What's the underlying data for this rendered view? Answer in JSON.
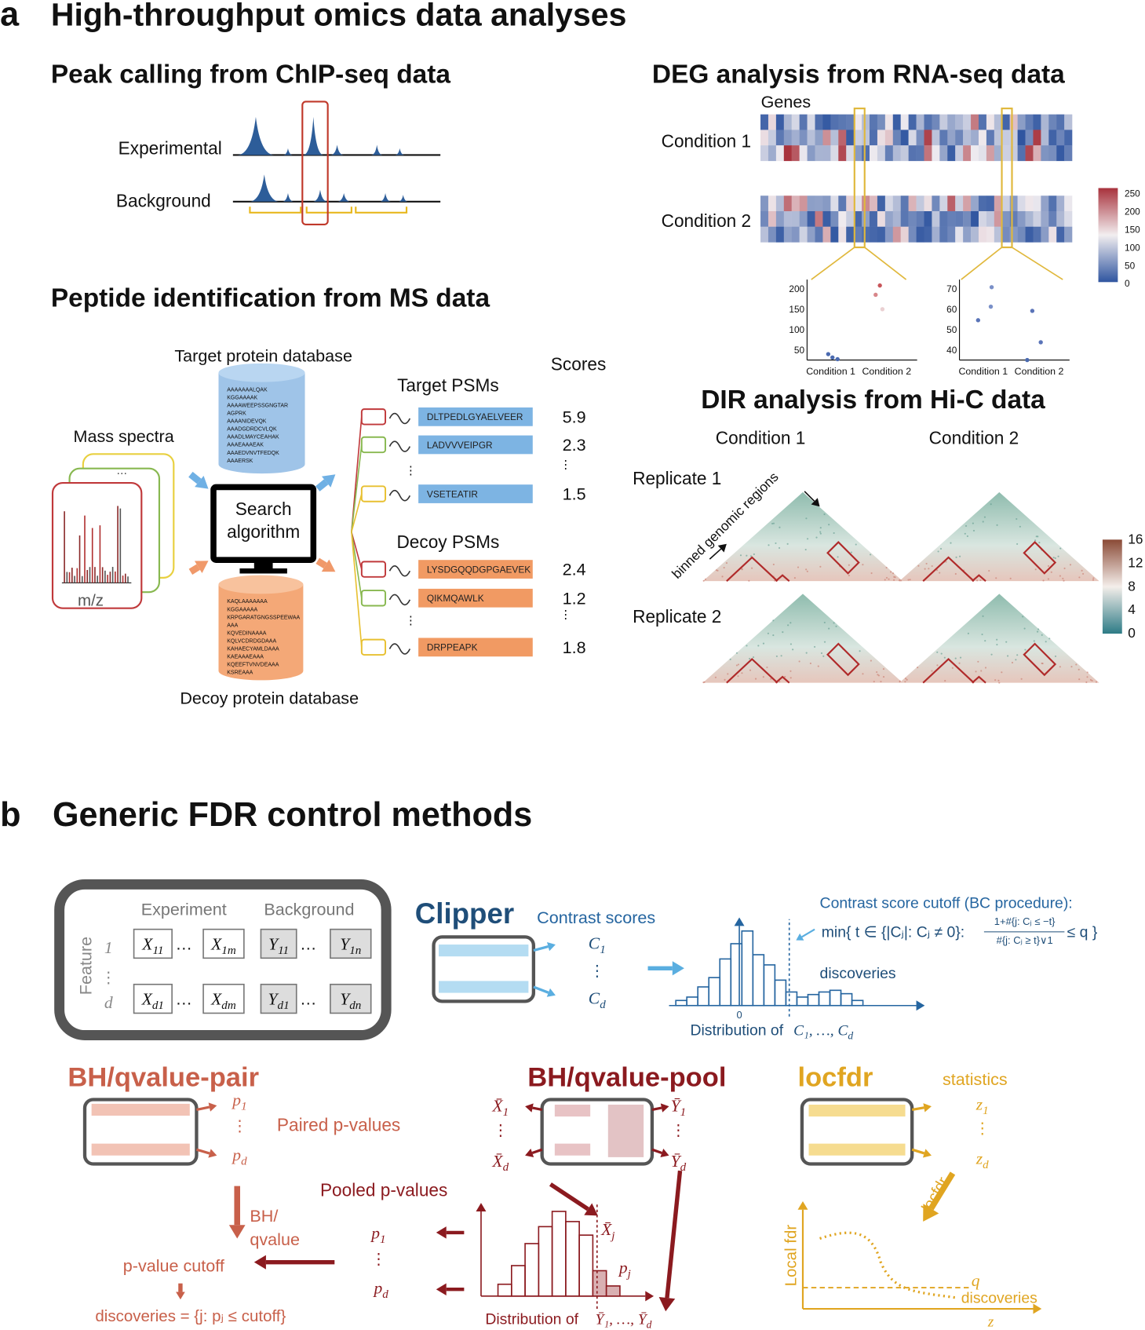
{
  "panel_a": {
    "label": "a",
    "title": "High-throughput omics data analyses",
    "peak_calling": {
      "title": "Peak calling from ChIP-seq data",
      "experimental": "Experimental",
      "background": "Background"
    },
    "deg": {
      "title": "DEG analysis from RNA-seq data",
      "genes": "Genes",
      "condition_1": "Condition 1",
      "condition_2": "Condition 2",
      "colorbar_ticks": [
        250,
        200,
        150,
        100,
        50,
        0
      ],
      "scatter_left_yticks": [
        200,
        150,
        100,
        50
      ],
      "scatter_right_yticks": [
        70,
        60,
        50,
        40
      ],
      "scatter_xlabels": [
        "Condition 1",
        "Condition 2"
      ]
    },
    "ms": {
      "title": "Peptide identification from MS data",
      "target_database": "Target protein database",
      "decoy_database": "Decoy protein database",
      "target_entries": [
        "AAAAAAALQAK",
        "KGGAAAAK",
        "AAAAWEEPSSGNGTAR",
        "AGPRK",
        "AAAANIDEVQK",
        "AAADGDRDCVLQK",
        "AAADLMAYCEAHAK",
        "AAAEAAAEAK",
        "AAAEDVNVTFEDQK",
        "AAAERSK"
      ],
      "decoy_entries": [
        "KAQLAAAAAAA",
        "KGGAAAAA",
        "KRPGARATGNGSSPEEWAA",
        "AAA",
        "KQVEDINAAAA",
        "KQLVCDRDGDAAA",
        "KAHAECYAMLDAAA",
        "KAEAAAEAAA",
        "KQEEFTVNVDEAAA",
        "KSREAAA"
      ],
      "mass_spectra": "Mass spectra",
      "mz": "m/z",
      "search": "Search",
      "algorithm": "algorithm",
      "scores": "Scores",
      "target_psms": "Target PSMs",
      "decoy_psms": "Decoy PSMs",
      "vdots": "⋮",
      "target_rows": [
        {
          "peptide": "DLTPEDLGYAELVEER",
          "score": 5.9
        },
        {
          "peptide": "LADVVVEIPGR",
          "score": 2.3
        },
        {
          "peptide": "VSETEATIR",
          "score": 1.5
        }
      ],
      "decoy_rows": [
        {
          "peptide": "LYSDGQQDGPGAEVEK",
          "score": 2.4
        },
        {
          "peptide": "QIKMQAWLK",
          "score": 1.2
        },
        {
          "peptide": "DRPPEAPK",
          "score": 1.8
        }
      ]
    },
    "dir": {
      "title": "DIR analysis from Hi-C data",
      "condition_1": "Condition 1",
      "condition_2": "Condition 2",
      "replicate_1": "Replicate 1",
      "replicate_2": "Replicate 2",
      "axis_label": "binned genomic regions",
      "colorbar_ticks": [
        16,
        12,
        8,
        4,
        0
      ]
    }
  },
  "panel_b": {
    "label": "b",
    "title": "Generic FDR control methods",
    "matrix": {
      "experiment": "Experiment",
      "background": "Background",
      "feature": "Feature",
      "row_1": "1",
      "row_d": "d",
      "vdots": "⋮",
      "ellipsis": "…",
      "cells": [
        [
          {
            "base": "X",
            "sub": "11"
          },
          {
            "base": "X",
            "sub": "1m"
          },
          {
            "base": "Y",
            "sub": "11"
          },
          {
            "base": "Y",
            "sub": "1n"
          }
        ],
        [
          {
            "base": "X",
            "sub": "d1"
          },
          {
            "base": "X",
            "sub": "dm"
          },
          {
            "base": "Y",
            "sub": "d1"
          },
          {
            "base": "Y",
            "sub": "dn"
          }
        ]
      ]
    },
    "clipper": {
      "title": "Clipper",
      "contrast_scores": "Contrast scores",
      "c_1": {
        "base": "C",
        "sub": "1"
      },
      "c_d": {
        "base": "C",
        "sub": "d"
      },
      "vdots": "⋮",
      "cutoff_title": "Contrast score cutoff (BC procedure):",
      "cutoff_lhs": "min{ t ∈ {|Cⱼ|: Cⱼ ≠ 0}:",
      "cutoff_numerator": "1+#{j: Cⱼ ≤ −t}",
      "cutoff_denominator": "#{j: Cⱼ ≥ t}∨1",
      "cutoff_rhs": "≤ q }",
      "discoveries": "discoveries",
      "zero": "0",
      "distribution_label": "Distribution of",
      "distribution_vars": {
        "base": "C₁, …, C",
        "sub": "d"
      }
    },
    "bh_pair": {
      "title": "BH/qvalue-pair",
      "p_1": {
        "base": "p",
        "sub": "1"
      },
      "p_d": {
        "base": "p",
        "sub": "d"
      },
      "vdots": "⋮",
      "paired_pvalues": "Paired p-values",
      "method_1": "BH/",
      "method_2": "qvalue",
      "cutoff": "p-value cutoff",
      "discoveries": "discoveries = {j: pⱼ ≤ cutoff}"
    },
    "bh_pool": {
      "title": "BH/qvalue-pool",
      "x_1": {
        "base": "X̄",
        "sub": "1"
      },
      "x_d": {
        "base": "X̄",
        "sub": "d"
      },
      "y_1": {
        "base": "Ȳ",
        "sub": "1"
      },
      "y_d": {
        "base": "Ȳ",
        "sub": "d"
      },
      "vdots": "⋮",
      "pooled_pvalues": "Pooled p-values",
      "p_1": {
        "base": "p",
        "sub": "1"
      },
      "p_d": {
        "base": "p",
        "sub": "d"
      },
      "x_j": {
        "base": "X̄",
        "sub": "j"
      },
      "p_j": {
        "base": "p",
        "sub": "j"
      },
      "distribution_label": "Distribution of",
      "distribution_vars": {
        "base": "Ȳ₁, …, Ȳ",
        "sub": "d"
      }
    },
    "locfdr": {
      "title": "locfdr",
      "statistics": "statistics",
      "z_1": {
        "base": "z",
        "sub": "1"
      },
      "z_d": {
        "base": "z",
        "sub": "d"
      },
      "vdots": "⋮",
      "arrow_label": "locfdr",
      "y_axis": "Local fdr",
      "q": "q",
      "discoveries": "discoveries",
      "x_axis": "z"
    }
  }
}
